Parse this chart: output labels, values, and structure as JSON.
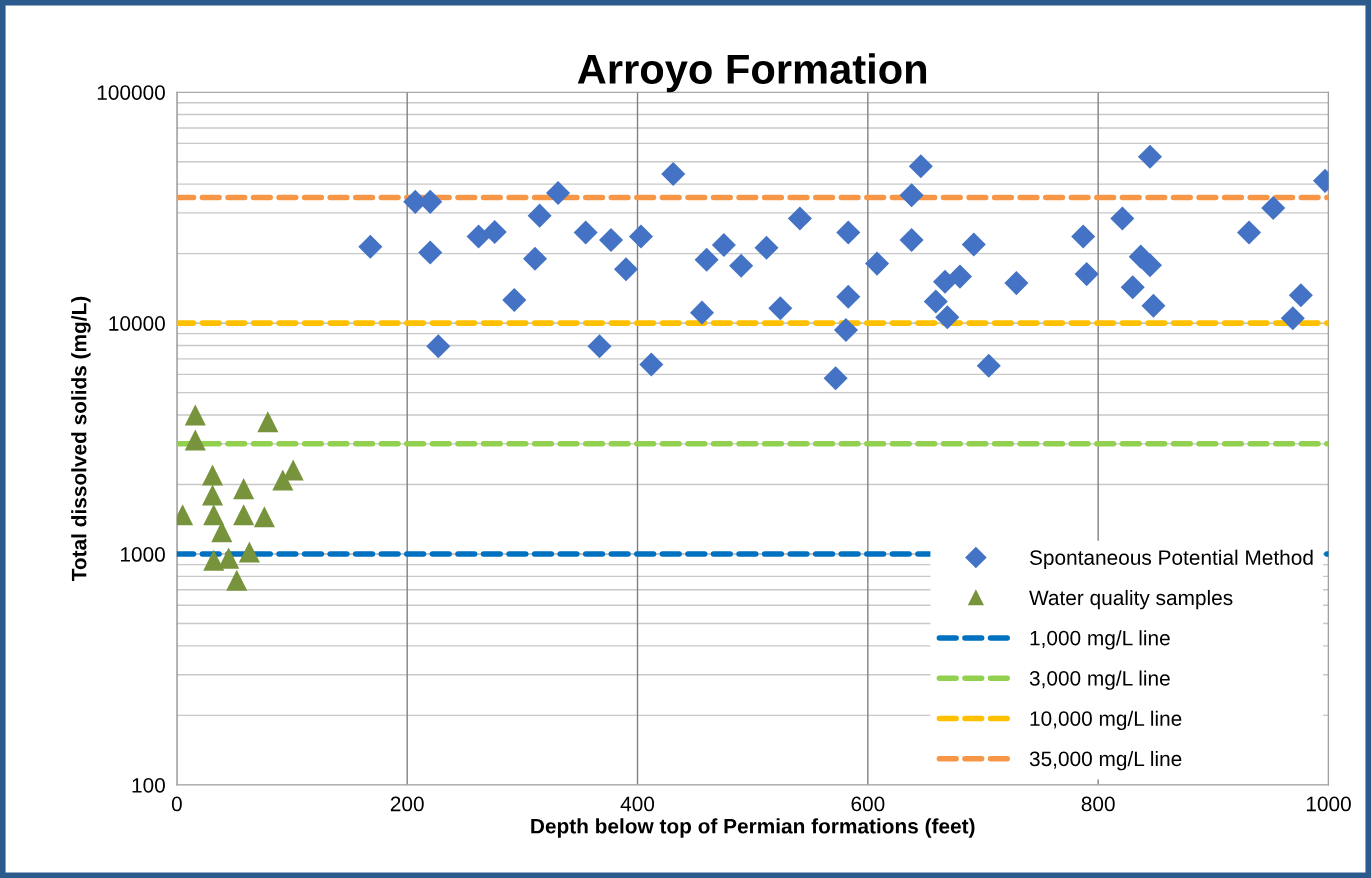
{
  "chart_data": {
    "type": "scatter",
    "title": "Arroyo Formation",
    "xlabel": "Depth below top of Permian formations (feet)",
    "ylabel": "Total dissolved solids (mg/L)",
    "log": "y",
    "xlim": [
      0,
      1000
    ],
    "xticks": [
      0,
      200,
      400,
      600,
      800,
      1000
    ],
    "ylim": [
      100,
      100000
    ],
    "yticks": [
      100,
      1000,
      10000,
      100000
    ],
    "grid": true,
    "legend": "bottom right",
    "series": [
      {
        "name": "Spontaneous Potential Method",
        "color": "#4472c4",
        "marker": "diamond",
        "x": [
          168,
          207,
          220,
          220,
          227,
          262,
          276,
          315,
          311,
          293,
          331,
          355,
          377,
          390,
          403,
          367,
          431,
          412,
          456,
          460,
          475,
          490,
          512,
          524,
          541,
          583,
          583,
          581,
          572,
          608,
          646,
          638,
          638,
          667,
          659,
          669,
          680,
          692,
          705,
          729,
          787,
          790,
          845,
          821,
          837,
          845,
          830,
          848,
          931,
          952,
          997,
          976,
          969
        ],
        "values": [
          21400,
          33500,
          33500,
          20200,
          7940,
          23700,
          24800,
          29200,
          19000,
          12600,
          36600,
          24700,
          22900,
          17100,
          23700,
          7940,
          44200,
          6620,
          11100,
          18800,
          21800,
          17700,
          21200,
          11600,
          28400,
          24700,
          13000,
          9330,
          5770,
          18100,
          47800,
          35800,
          22900,
          15100,
          12400,
          10600,
          15900,
          21900,
          6530,
          14900,
          23700,
          16300,
          52500,
          28400,
          19400,
          17800,
          14300,
          11900,
          24700,
          31500,
          41300,
          13200,
          10500
        ]
      },
      {
        "name": "Water quality samples",
        "color": "#77933c",
        "marker": "triangle",
        "x": [
          16,
          16,
          79,
          5,
          31,
          31,
          32,
          39,
          58,
          58,
          76,
          92,
          101,
          32,
          63,
          52,
          45
        ],
        "values": [
          4000,
          3120,
          3740,
          1480,
          2200,
          1800,
          1480,
          1250,
          1920,
          1480,
          1450,
          2090,
          2310,
          940,
          1020,
          770,
          960
        ]
      }
    ],
    "ref_lines": [
      {
        "axis": "y",
        "value": 1000,
        "label": "1,000 mg/L line",
        "color": "#0070c0",
        "line_style": "dashed"
      },
      {
        "axis": "y",
        "value": 3000,
        "label": "3,000 mg/L line",
        "color": "#92d050",
        "line_style": "dashed"
      },
      {
        "axis": "y",
        "value": 10000,
        "label": "10,000 mg/L line",
        "color": "#ffc000",
        "line_style": "dashed"
      },
      {
        "axis": "y",
        "value": 35000,
        "label": "35,000 mg/L line",
        "color": "#f79646",
        "line_style": "dashed"
      }
    ]
  }
}
